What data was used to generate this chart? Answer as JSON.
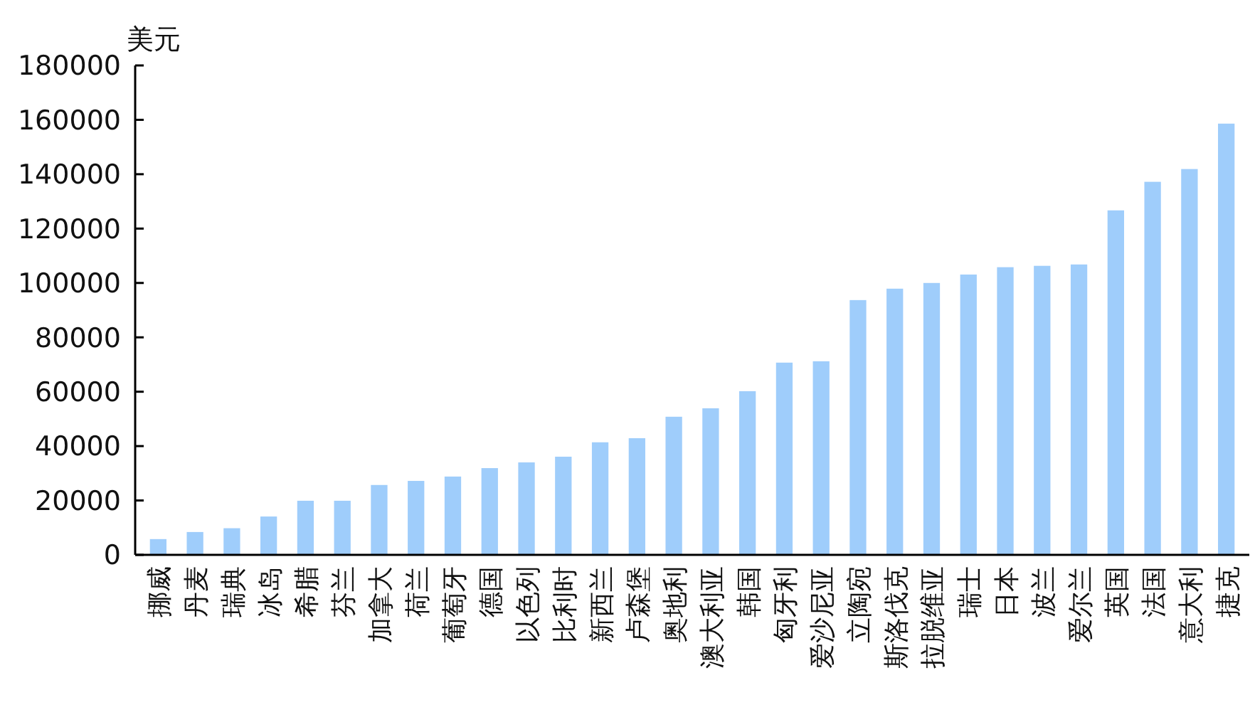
{
  "chart_data": {
    "type": "bar",
    "ylabel": "美元",
    "categories": [
      "挪威",
      "丹麦",
      "瑞典",
      "冰岛",
      "希腊",
      "芬兰",
      "加拿大",
      "荷兰",
      "葡萄牙",
      "德国",
      "以色列",
      "比利时",
      "新西兰",
      "卢森堡",
      "奥地利",
      "澳大利亚",
      "韩国",
      "匈牙利",
      "爱沙尼亚",
      "立陶宛",
      "斯洛伐克",
      "拉脱维亚",
      "瑞士",
      "日本",
      "波兰",
      "爱尔兰",
      "英国",
      "法国",
      "意大利",
      "捷克"
    ],
    "values": [
      5800,
      8400,
      9800,
      14100,
      19900,
      19900,
      25700,
      27200,
      28800,
      31900,
      34000,
      36100,
      41400,
      42900,
      50800,
      53900,
      60200,
      70700,
      71200,
      93700,
      97900,
      100000,
      103100,
      105800,
      106300,
      106800,
      126700,
      137200,
      141900,
      158600
    ],
    "color": "#9fcdfb",
    "ylim": [
      0,
      180000
    ],
    "yticks": [
      0,
      20000,
      40000,
      60000,
      80000,
      100000,
      120000,
      140000,
      160000,
      180000
    ],
    "grid": false
  }
}
